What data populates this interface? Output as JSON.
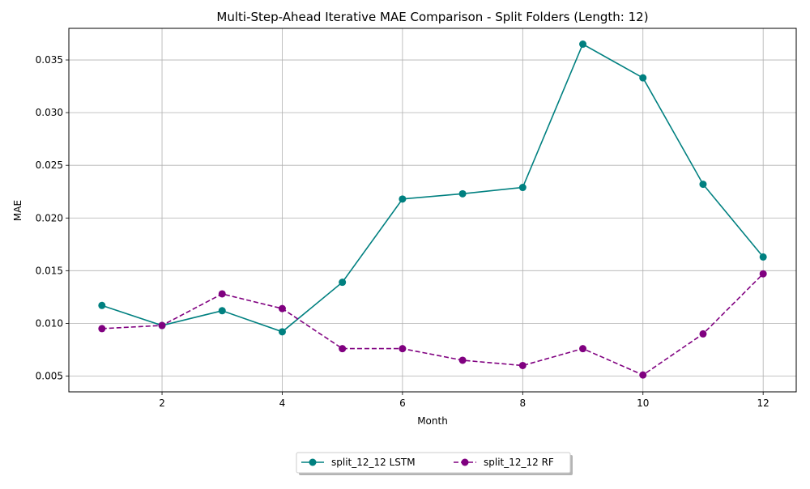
{
  "chart_data": {
    "type": "line",
    "title": "Multi-Step-Ahead Iterative MAE Comparison - Split Folders (Length: 12)",
    "xlabel": "Month",
    "ylabel": "MAE",
    "xlim": [
      0.45,
      12.55
    ],
    "ylim": [
      0.0035,
      0.038
    ],
    "x": [
      1,
      2,
      3,
      4,
      5,
      6,
      7,
      8,
      9,
      10,
      11,
      12
    ],
    "xticks": [
      2,
      4,
      6,
      8,
      10,
      12
    ],
    "xtick_labels": [
      "2",
      "4",
      "6",
      "8",
      "10",
      "12"
    ],
    "yticks": [
      0.005,
      0.01,
      0.015,
      0.02,
      0.025,
      0.03,
      0.035
    ],
    "ytick_labels": [
      "0.005",
      "0.010",
      "0.015",
      "0.020",
      "0.025",
      "0.030",
      "0.035"
    ],
    "grid": true,
    "legend_position": "bottom-center",
    "series": [
      {
        "name": "split_12_12 LSTM",
        "color": "#008080",
        "linestyle": "solid",
        "marker": "circle",
        "values": [
          0.0117,
          0.0098,
          0.0112,
          0.0092,
          0.0139,
          0.0218,
          0.0223,
          0.0229,
          0.0365,
          0.0333,
          0.0232,
          0.0163
        ]
      },
      {
        "name": "split_12_12 RF",
        "color": "#800080",
        "linestyle": "dashed",
        "marker": "circle",
        "values": [
          0.0095,
          0.0098,
          0.0128,
          0.0114,
          0.0076,
          0.0076,
          0.0065,
          0.006,
          0.0076,
          0.0051,
          0.009,
          0.0147
        ]
      }
    ]
  }
}
